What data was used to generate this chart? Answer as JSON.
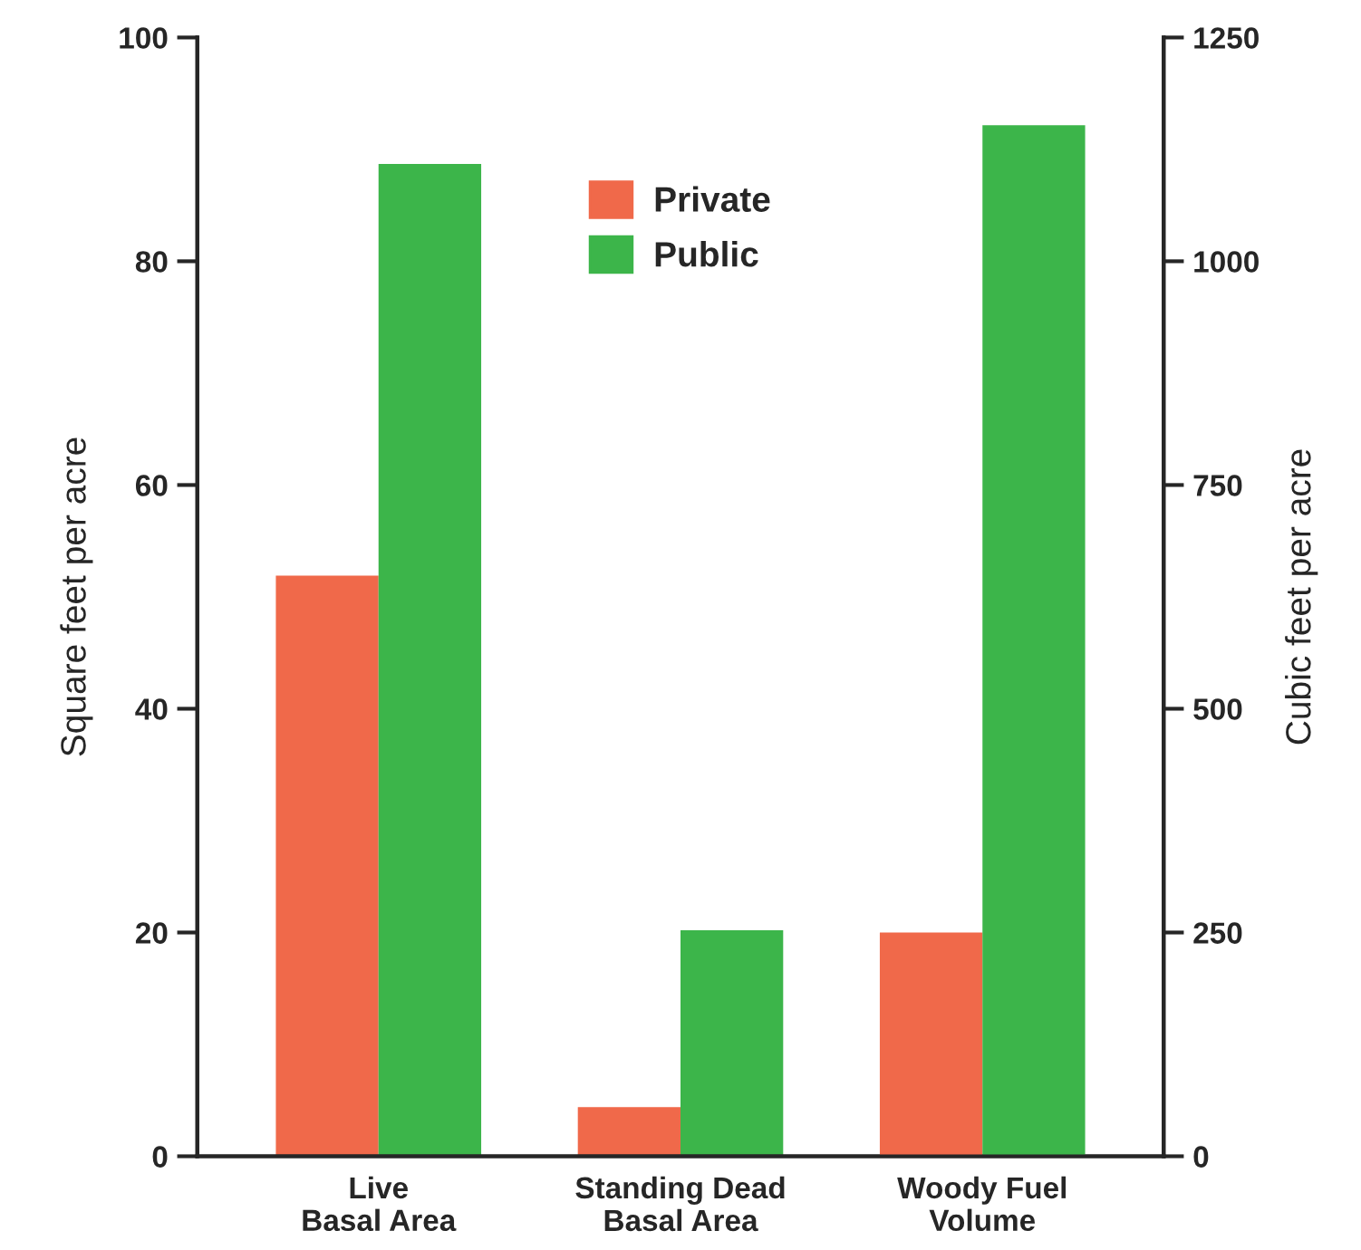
{
  "chart_data": {
    "type": "bar",
    "categories": [
      "Live\nBasal Area",
      "Standing Dead\nBasal Area",
      "Woody Fuel\nVolume"
    ],
    "ylabel": "Square feet per acre",
    "y2label": "Cubic feet per acre",
    "ylim": [
      0,
      100
    ],
    "yticks": [
      0,
      20,
      40,
      60,
      80,
      100
    ],
    "y2lim": [
      0,
      1250
    ],
    "y2ticks": [
      0,
      250,
      500,
      750,
      1000,
      1250
    ],
    "series": [
      {
        "name": "Private",
        "color": "#f0694a",
        "values": [
          51.9,
          4.4,
          null
        ]
      },
      {
        "name": "Public",
        "color": "#3cb54a",
        "values": [
          88.7,
          20.2,
          null
        ]
      },
      {
        "color": "#f0694a",
        "axis": "y2",
        "values": [
          null,
          null,
          250
        ]
      },
      {
        "color": "#3cb54a",
        "axis": "y2",
        "values": [
          null,
          null,
          1152
        ]
      }
    ],
    "legend": "top",
    "grid": false
  }
}
